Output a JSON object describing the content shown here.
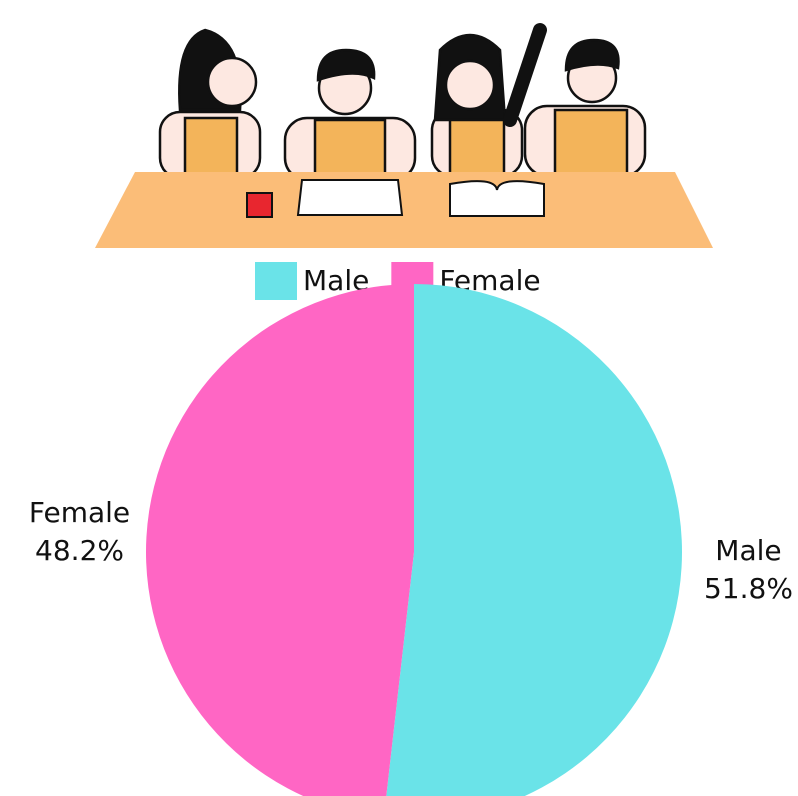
{
  "chart_data": {
    "type": "pie",
    "categories": [
      "Male",
      "Female"
    ],
    "values": [
      51.8,
      48.2
    ],
    "value_labels": [
      "51.8%",
      "48.2%"
    ],
    "colors": [
      "#6ae3e8",
      "#ff66c4"
    ]
  }
}
